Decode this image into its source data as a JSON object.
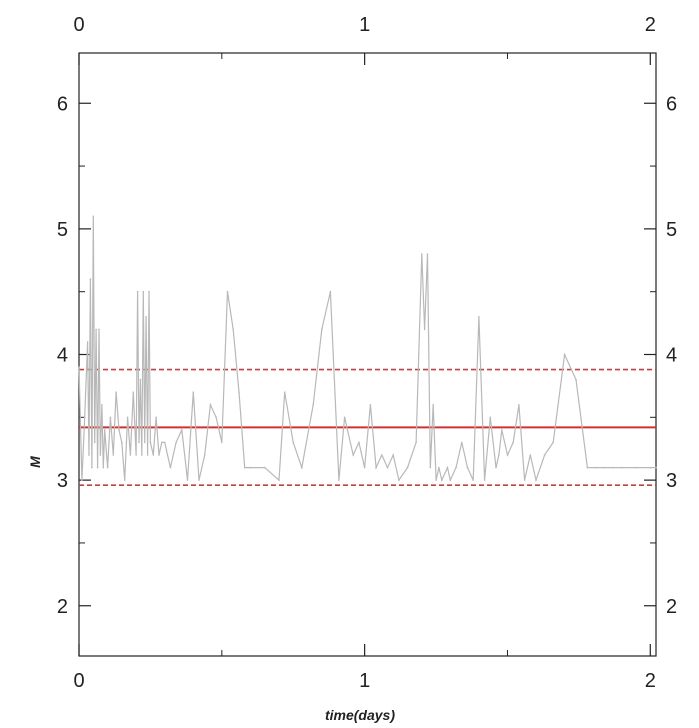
{
  "chart_data": {
    "type": "line",
    "title": "",
    "xlabel": "time(days)",
    "ylabel": "M",
    "xlim": [
      0,
      2.02
    ],
    "ylim": [
      1.6,
      6.4
    ],
    "x_ticks": [
      0,
      1,
      2
    ],
    "x_tick_labels": [
      "0",
      "1",
      "2"
    ],
    "y_ticks": [
      2,
      3,
      4,
      5,
      6
    ],
    "y_tick_labels": [
      "2",
      "3",
      "4",
      "5",
      "6"
    ],
    "grid": false,
    "colors": {
      "series": "#b8b8b8",
      "mean": "#d03030",
      "bounds": "#c04040",
      "axis": "#222222"
    },
    "series": [
      {
        "x": [
          0.0,
          0.01,
          0.02,
          0.03,
          0.035,
          0.04,
          0.045,
          0.05,
          0.055,
          0.06,
          0.065,
          0.07,
          0.075,
          0.08,
          0.085,
          0.09,
          0.1,
          0.11,
          0.12,
          0.13,
          0.14,
          0.15,
          0.16,
          0.17,
          0.18,
          0.19,
          0.2,
          0.205,
          0.21,
          0.215,
          0.22,
          0.225,
          0.23,
          0.235,
          0.24,
          0.245,
          0.25,
          0.26,
          0.27,
          0.28,
          0.29,
          0.3,
          0.32,
          0.34,
          0.36,
          0.38,
          0.4,
          0.42,
          0.44,
          0.46,
          0.48,
          0.5,
          0.52,
          0.54,
          0.56,
          0.58,
          0.6,
          0.65,
          0.7,
          0.72,
          0.75,
          0.78,
          0.82,
          0.85,
          0.88,
          0.91,
          0.93,
          0.96,
          0.98,
          1.0,
          1.02,
          1.04,
          1.06,
          1.08,
          1.1,
          1.12,
          1.15,
          1.18,
          1.2,
          1.21,
          1.22,
          1.23,
          1.24,
          1.25,
          1.26,
          1.27,
          1.29,
          1.3,
          1.32,
          1.34,
          1.36,
          1.38,
          1.4,
          1.42,
          1.44,
          1.46,
          1.47,
          1.48,
          1.5,
          1.52,
          1.54,
          1.56,
          1.58,
          1.6,
          1.63,
          1.66,
          1.7,
          1.74,
          1.78,
          1.81,
          1.84,
          1.87,
          1.9,
          1.95,
          2.0,
          2.02
        ],
        "y": [
          3.9,
          3.0,
          3.5,
          4.1,
          3.2,
          4.6,
          3.1,
          5.1,
          3.3,
          4.2,
          3.1,
          4.2,
          3.2,
          3.6,
          3.1,
          3.4,
          3.1,
          3.5,
          3.2,
          3.7,
          3.4,
          3.3,
          3.0,
          3.5,
          3.2,
          3.7,
          3.2,
          4.5,
          3.3,
          3.8,
          3.2,
          4.5,
          3.3,
          4.3,
          3.2,
          4.5,
          3.3,
          3.2,
          3.5,
          3.2,
          3.3,
          3.3,
          3.1,
          3.3,
          3.4,
          3.0,
          3.7,
          3.0,
          3.2,
          3.6,
          3.5,
          3.3,
          4.5,
          4.2,
          3.7,
          3.1,
          3.1,
          3.1,
          3.0,
          3.7,
          3.3,
          3.1,
          3.6,
          4.2,
          4.5,
          3.0,
          3.5,
          3.2,
          3.3,
          3.1,
          3.6,
          3.1,
          3.2,
          3.1,
          3.2,
          3.0,
          3.1,
          3.3,
          4.8,
          4.2,
          4.8,
          3.1,
          3.6,
          3.0,
          3.1,
          3.0,
          3.1,
          3.0,
          3.1,
          3.3,
          3.1,
          3.0,
          4.3,
          3.0,
          3.5,
          3.1,
          3.2,
          3.4,
          3.2,
          3.3,
          3.6,
          3.0,
          3.2,
          3.0,
          3.2,
          3.3,
          4.0,
          3.8,
          3.1,
          3.1,
          3.1,
          3.1,
          3.1,
          3.1,
          3.1,
          3.1
        ]
      }
    ],
    "reference_lines": [
      {
        "y": 3.42,
        "style": "solid"
      },
      {
        "y": 3.88,
        "style": "dashed"
      },
      {
        "y": 2.96,
        "style": "dashed"
      }
    ]
  }
}
